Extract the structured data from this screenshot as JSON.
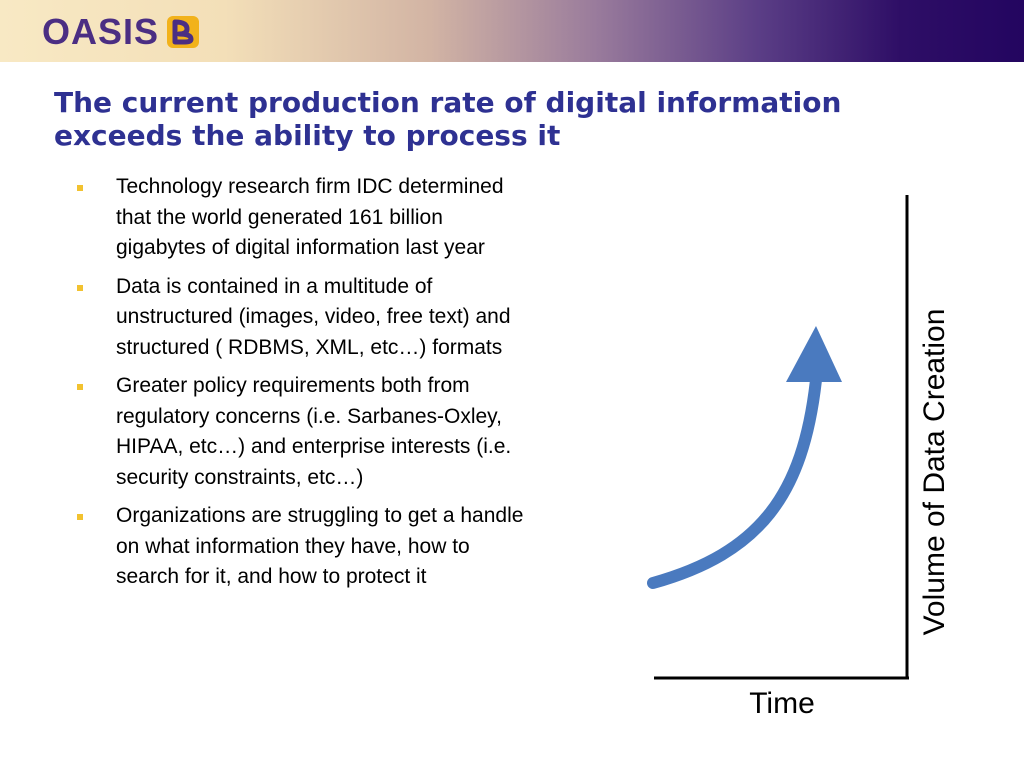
{
  "header": {
    "logo_text": "OASIS",
    "logo_icon": "oasis-mark-icon",
    "band_colors": [
      "#f8e9c4",
      "#d2b4a4",
      "#5b3e86",
      "#230560"
    ]
  },
  "slide": {
    "title": "The current production rate of digital information exceeds the ability to process it",
    "title_color": "#2e3192",
    "bullet_color": "#f2c230",
    "bullets": [
      {
        "text": "Technology research firm IDC determined that the world generated 161 billion gigabytes of digital information last year"
      },
      {
        "text": "Data is contained in a multitude of unstructured (images, video, free text) and structured ( RDBMS, XML, etc…) formats"
      },
      {
        "text": "Greater policy requirements both from regulatory concerns (i.e. Sarbanes-Oxley, HIPAA, etc…) and enterprise interests (i.e. security constraints, etc…)"
      },
      {
        "text": "Organizations are struggling to get a handle on what information they have, how to search for it, and how to protect it"
      }
    ]
  },
  "diagram": {
    "x_axis_label": "Time",
    "y_axis_label": "Volume of Data Creation",
    "arrow_color": "#4a7abf"
  }
}
